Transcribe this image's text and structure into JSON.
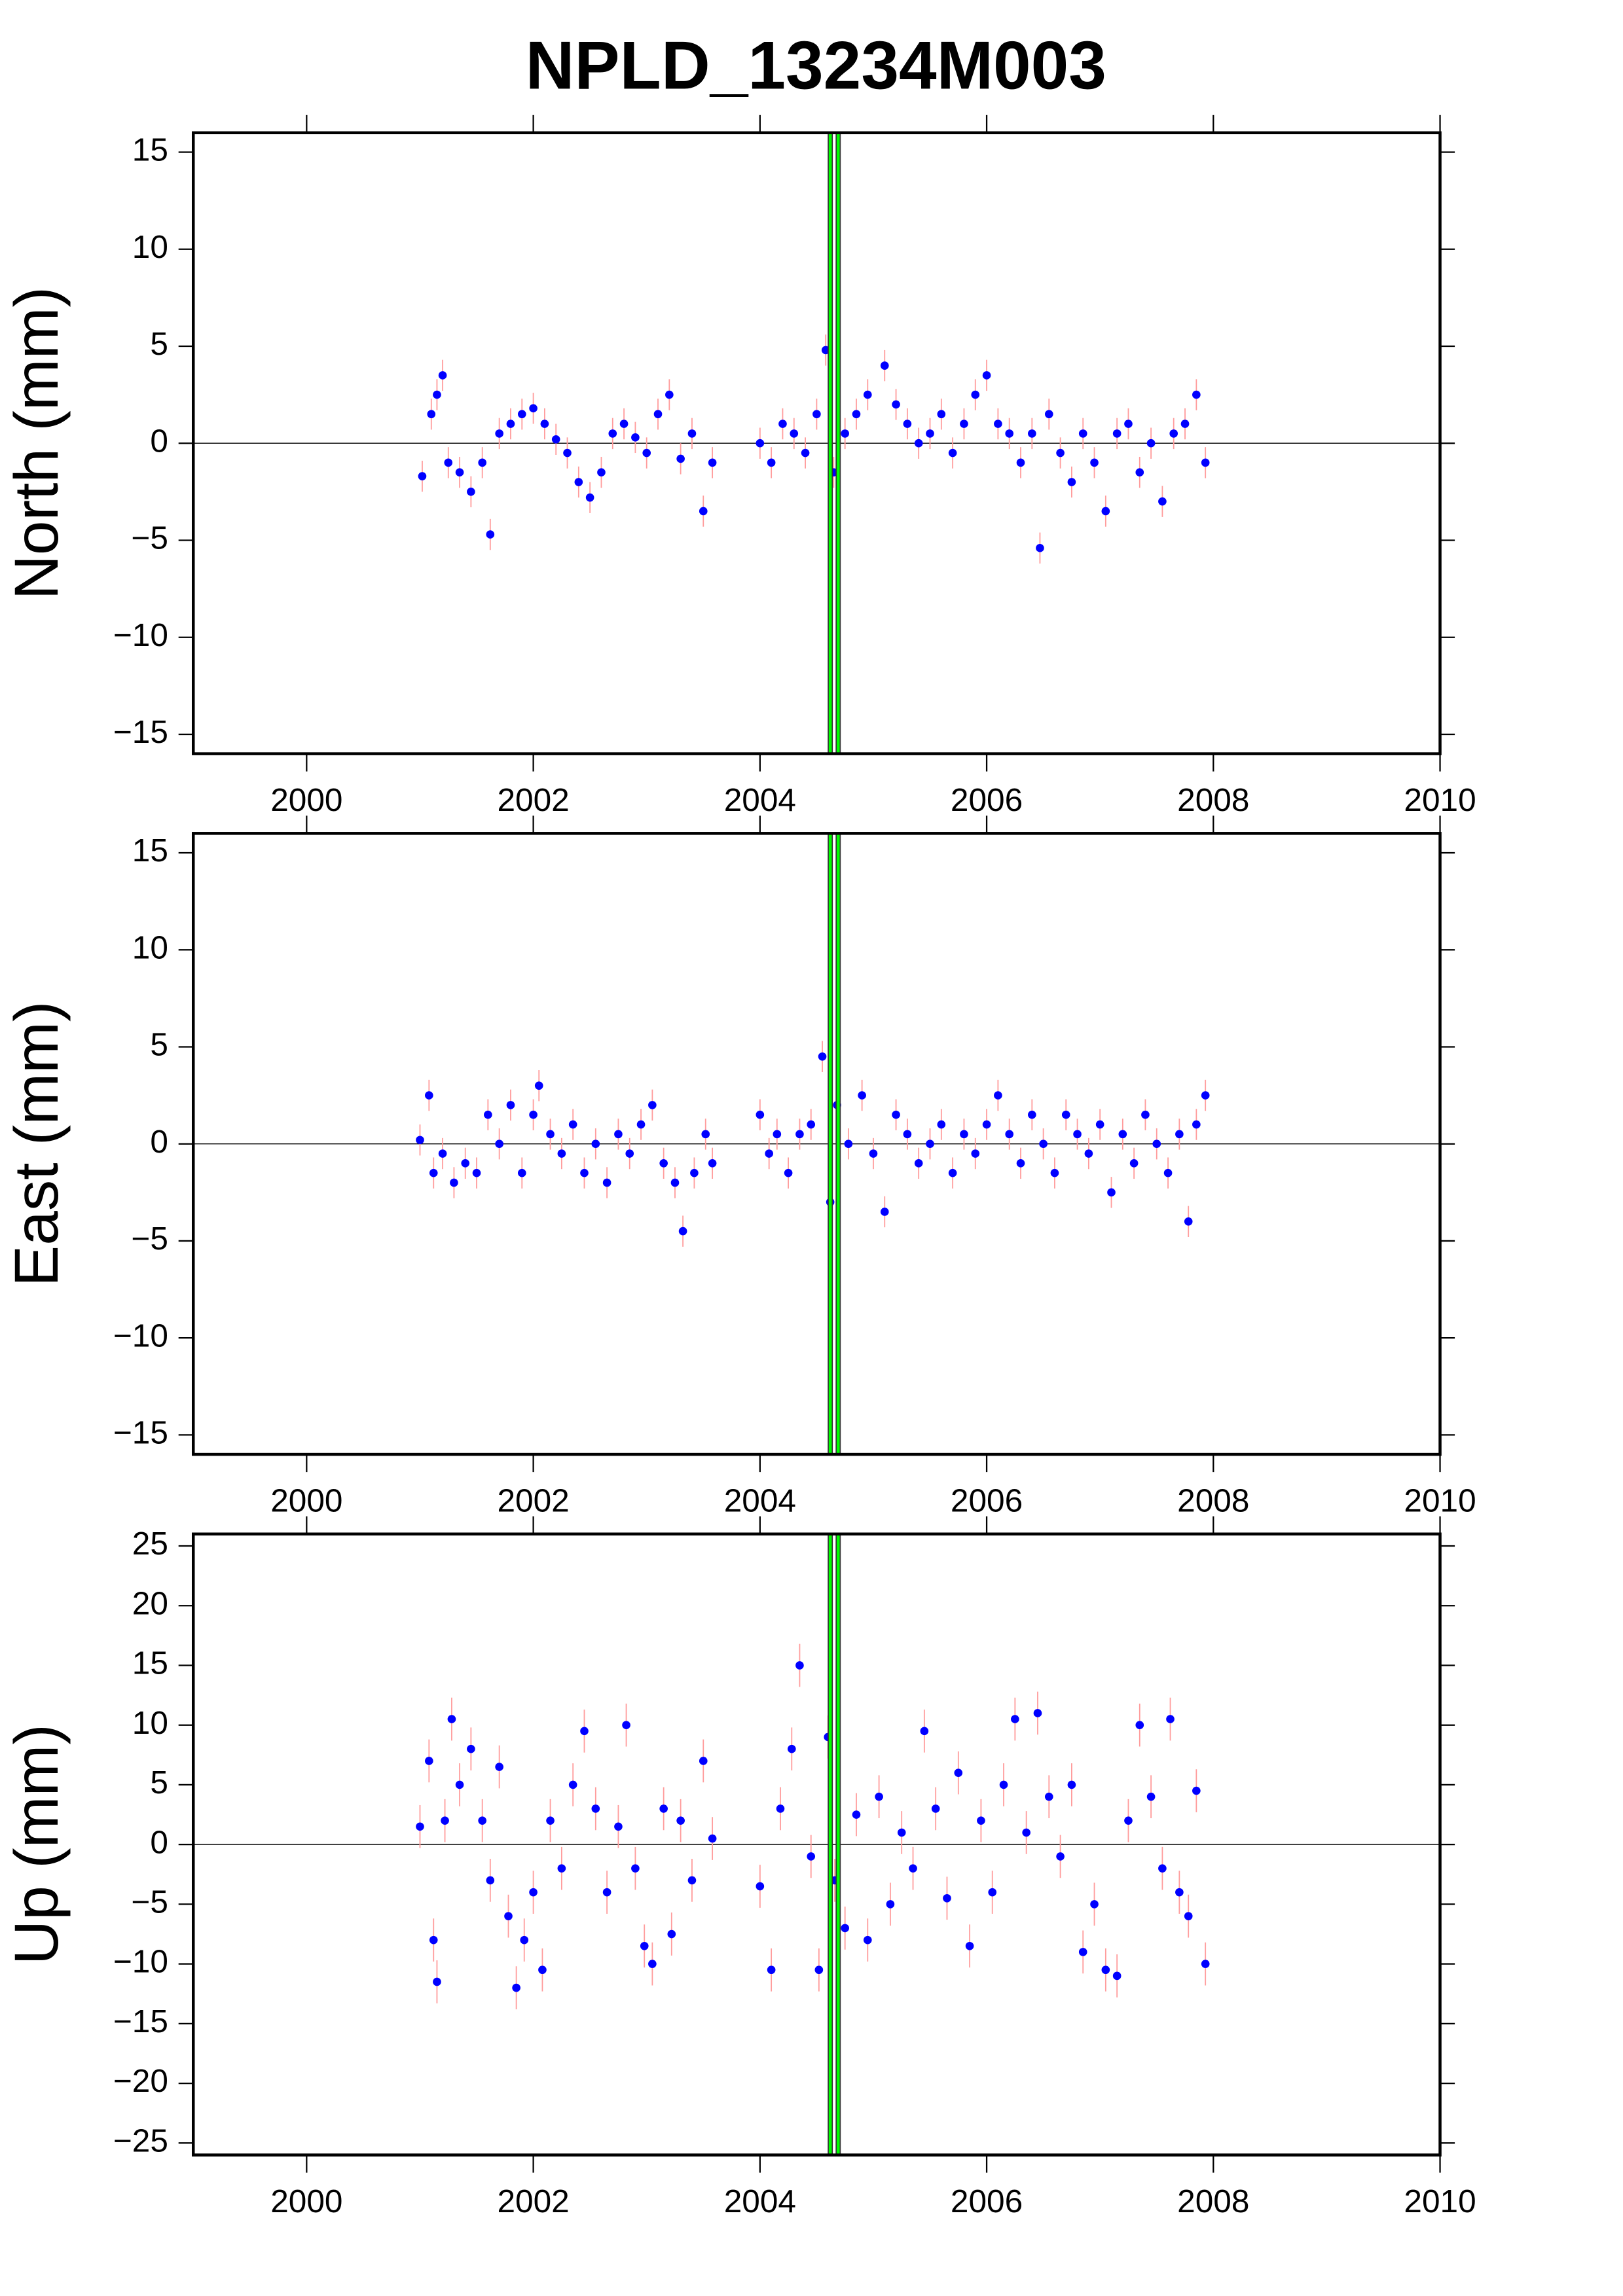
{
  "chart_data": [
    {
      "type": "scatter",
      "title": "NPLD_13234M003",
      "y_label": "North (mm)",
      "x": [
        2001.02,
        2001.1,
        2001.15,
        2001.2,
        2001.25,
        2001.35,
        2001.45,
        2001.55,
        2001.62,
        2001.7,
        2001.8,
        2001.9,
        2002.0,
        2002.1,
        2002.2,
        2002.3,
        2002.4,
        2002.5,
        2002.6,
        2002.7,
        2002.8,
        2002.9,
        2003.0,
        2003.1,
        2003.2,
        2003.3,
        2003.4,
        2003.5,
        2003.58,
        2004.0,
        2004.1,
        2004.2,
        2004.3,
        2004.4,
        2004.5,
        2004.58,
        2004.65,
        2004.75,
        2004.85,
        2004.95,
        2005.1,
        2005.2,
        2005.3,
        2005.4,
        2005.5,
        2005.6,
        2005.7,
        2005.8,
        2005.9,
        2006.0,
        2006.1,
        2006.2,
        2006.3,
        2006.4,
        2006.47,
        2006.55,
        2006.65,
        2006.75,
        2006.85,
        2006.95,
        2007.05,
        2007.15,
        2007.25,
        2007.35,
        2007.45,
        2007.55,
        2007.65,
        2007.75,
        2007.85,
        2007.93
      ],
      "values": [
        -1.7,
        1.5,
        2.5,
        3.5,
        -1.0,
        -1.5,
        -2.5,
        -1.0,
        -4.7,
        0.5,
        1.0,
        1.5,
        1.8,
        1.0,
        0.2,
        -0.5,
        -2.0,
        -2.8,
        -1.5,
        0.5,
        1.0,
        0.3,
        -0.5,
        1.5,
        2.5,
        -0.8,
        0.5,
        -3.5,
        -1.0,
        0,
        -1.0,
        1.0,
        0.5,
        -0.5,
        1.5,
        4.8,
        -1.5,
        0.5,
        1.5,
        2.5,
        4.0,
        2.0,
        1.0,
        0.0,
        0.5,
        1.5,
        -0.5,
        1.0,
        2.5,
        3.5,
        1.0,
        0.5,
        -1.0,
        0.5,
        -5.4,
        1.5,
        -0.5,
        -2.0,
        0.5,
        -1.0,
        -3.5,
        0.5,
        1.0,
        -1.5,
        0.0,
        -3.0,
        0.5,
        1.0,
        2.5,
        -1.0
      ],
      "error": 0.8,
      "color": "#0000ff",
      "error_color": "#ff9c9c",
      "xlim": [
        1999,
        2010
      ],
      "xticks": [
        2000,
        2002,
        2004,
        2006,
        2008,
        2010
      ],
      "ylim": [
        -16,
        16
      ],
      "yticks": [
        {
          "value": -15,
          "label": "−15"
        },
        {
          "value": -10,
          "label": "−10"
        },
        {
          "value": -5,
          "label": "−5"
        },
        0,
        5,
        10,
        15
      ],
      "reference_line": 0,
      "breaks": [
        2004.62,
        2004.69
      ],
      "break_color": "#00ff00"
    },
    {
      "type": "scatter",
      "y_label": "East (mm)",
      "x": [
        2001.0,
        2001.08,
        2001.12,
        2001.2,
        2001.3,
        2001.4,
        2001.5,
        2001.6,
        2001.7,
        2001.8,
        2001.9,
        2002.0,
        2002.05,
        2002.15,
        2002.25,
        2002.35,
        2002.45,
        2002.55,
        2002.65,
        2002.75,
        2002.85,
        2002.95,
        2003.05,
        2003.15,
        2003.25,
        2003.32,
        2003.42,
        2003.52,
        2003.58,
        2004.0,
        2004.08,
        2004.15,
        2004.25,
        2004.35,
        2004.45,
        2004.55,
        2004.62,
        2004.68,
        2004.78,
        2004.9,
        2005.0,
        2005.1,
        2005.2,
        2005.3,
        2005.4,
        2005.5,
        2005.6,
        2005.7,
        2005.8,
        2005.9,
        2006.0,
        2006.1,
        2006.2,
        2006.3,
        2006.4,
        2006.5,
        2006.6,
        2006.7,
        2006.8,
        2006.9,
        2007.0,
        2007.1,
        2007.2,
        2007.3,
        2007.4,
        2007.5,
        2007.6,
        2007.7,
        2007.78,
        2007.85,
        2007.93
      ],
      "values": [
        0.2,
        2.5,
        -1.5,
        -0.5,
        -2.0,
        -1.0,
        -1.5,
        1.5,
        0.0,
        2.0,
        -1.5,
        1.5,
        3.0,
        0.5,
        -0.5,
        1.0,
        -1.5,
        0.0,
        -2.0,
        0.5,
        -0.5,
        1.0,
        2.0,
        -1.0,
        -2.0,
        -4.5,
        -1.5,
        0.5,
        -1.0,
        1.5,
        -0.5,
        0.5,
        -1.5,
        0.5,
        1.0,
        4.5,
        -3.0,
        2.0,
        0.0,
        2.5,
        -0.5,
        -3.5,
        1.5,
        0.5,
        -1.0,
        0.0,
        1.0,
        -1.5,
        0.5,
        -0.5,
        1.0,
        2.5,
        0.5,
        -1.0,
        1.5,
        0.0,
        -1.5,
        1.5,
        0.5,
        -0.5,
        1.0,
        -2.5,
        0.5,
        -1.0,
        1.5,
        0.0,
        -1.5,
        0.5,
        -4.0,
        1.0,
        2.5
      ],
      "error": 0.8,
      "color": "#0000ff",
      "error_color": "#ff9c9c",
      "xlim": [
        1999,
        2010
      ],
      "xticks": [
        2000,
        2002,
        2004,
        2006,
        2008,
        2010
      ],
      "ylim": [
        -16,
        16
      ],
      "yticks": [
        {
          "value": -15,
          "label": "−15"
        },
        {
          "value": -10,
          "label": "−10"
        },
        {
          "value": -5,
          "label": "−5"
        },
        0,
        5,
        10,
        15
      ],
      "reference_line": 0,
      "breaks": [
        2004.62,
        2004.69
      ],
      "break_color": "#00ff00"
    },
    {
      "type": "scatter",
      "y_label": "Up (mm)",
      "x": [
        2001.0,
        2001.08,
        2001.12,
        2001.15,
        2001.22,
        2001.28,
        2001.35,
        2001.45,
        2001.55,
        2001.62,
        2001.7,
        2001.78,
        2001.85,
        2001.92,
        2002.0,
        2002.08,
        2002.15,
        2002.25,
        2002.35,
        2002.45,
        2002.55,
        2002.65,
        2002.75,
        2002.82,
        2002.9,
        2002.98,
        2003.05,
        2003.15,
        2003.22,
        2003.3,
        2003.4,
        2003.5,
        2003.58,
        2004.0,
        2004.1,
        2004.18,
        2004.28,
        2004.35,
        2004.45,
        2004.52,
        2004.6,
        2004.66,
        2004.75,
        2004.85,
        2004.95,
        2005.05,
        2005.15,
        2005.25,
        2005.35,
        2005.45,
        2005.55,
        2005.65,
        2005.75,
        2005.85,
        2005.95,
        2006.05,
        2006.15,
        2006.25,
        2006.35,
        2006.45,
        2006.55,
        2006.65,
        2006.75,
        2006.85,
        2006.95,
        2007.05,
        2007.15,
        2007.25,
        2007.35,
        2007.45,
        2007.55,
        2007.62,
        2007.7,
        2007.78,
        2007.85,
        2007.93
      ],
      "values": [
        1.5,
        7.0,
        -8.0,
        -11.5,
        2.0,
        10.5,
        5.0,
        8.0,
        2.0,
        -3.0,
        6.5,
        -6.0,
        -12.0,
        -8.0,
        -4.0,
        -10.5,
        2.0,
        -2.0,
        5.0,
        9.5,
        3.0,
        -4.0,
        1.5,
        10.0,
        -2.0,
        -8.5,
        -10.0,
        3.0,
        -7.5,
        2.0,
        -3.0,
        7.0,
        0.5,
        -3.5,
        -10.5,
        3.0,
        8.0,
        15.0,
        -1.0,
        -10.5,
        9.0,
        -3.0,
        -7.0,
        2.5,
        -8.0,
        4.0,
        -5.0,
        1.0,
        -2.0,
        9.5,
        3.0,
        -4.5,
        6.0,
        -8.5,
        2.0,
        -4.0,
        5.0,
        10.5,
        1.0,
        11.0,
        4.0,
        -1.0,
        5.0,
        -9.0,
        -5.0,
        -10.5,
        -11.0,
        2.0,
        10.0,
        4.0,
        -2.0,
        10.5,
        -4.0,
        -6.0,
        4.5,
        -10.0
      ],
      "error": 1.8,
      "color": "#0000ff",
      "error_color": "#ff9c9c",
      "xlim": [
        1999,
        2010
      ],
      "xticks": [
        2000,
        2002,
        2004,
        2006,
        2008,
        2010
      ],
      "ylim": [
        -26,
        26
      ],
      "yticks": [
        {
          "value": -25,
          "label": "−25"
        },
        {
          "value": -20,
          "label": "−20"
        },
        {
          "value": -15,
          "label": "−15"
        },
        {
          "value": -10,
          "label": "−10"
        },
        {
          "value": -5,
          "label": "−5"
        },
        0,
        5,
        10,
        15,
        20,
        25
      ],
      "reference_line": 0,
      "breaks": [
        2004.62,
        2004.69
      ],
      "break_color": "#00ff00"
    }
  ]
}
